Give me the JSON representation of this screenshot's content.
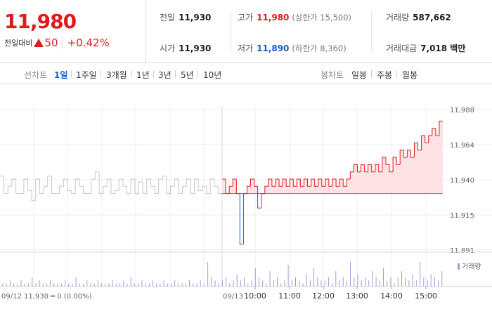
{
  "quote": {
    "price": "11,980",
    "change_label": "전일대비",
    "change_icon": "up-triangle-icon",
    "change_amount": "50",
    "change_percent": "+0.42%",
    "prev_close": {
      "label": "전일",
      "value": "11,930"
    },
    "open": {
      "label": "시가",
      "value": "11,930"
    },
    "high": {
      "label": "고가",
      "value": "11,980",
      "limit": "(상한가 15,500)"
    },
    "low": {
      "label": "저가",
      "value": "11,890",
      "limit": "(하한가 8,360)"
    },
    "volume": {
      "label": "거래량",
      "value": "587,662"
    },
    "turnover": {
      "label": "거래대금",
      "value": "7,018 백만"
    }
  },
  "toolbar": {
    "line_chart_label": "선차트",
    "periods": [
      "1일",
      "1주일",
      "3개월",
      "1년",
      "3년",
      "5년",
      "10년"
    ],
    "active_period": "1일",
    "candle_chart_label": "봉차트",
    "candle_periods": [
      "일봉",
      "주봉",
      "월봉"
    ]
  },
  "colors": {
    "up": "#e01b1b",
    "down": "#1261c4",
    "prev_day_line": "#c8c8c8",
    "up_fill": "#fde3e3",
    "volume": "#a996d6"
  },
  "chart_data": {
    "type": "line",
    "y_ticks": [
      "11,988",
      "11,964",
      "11,940",
      "11,915",
      "11,891"
    ],
    "ylim": [
      11891,
      11988
    ],
    "base_price": 11930,
    "prev_day": {
      "label": "09/12",
      "summary": "11,930 ━ 0 (0.00%)",
      "values": [
        11942,
        11930,
        11935,
        11940,
        11930,
        11930,
        11940,
        11932,
        11925,
        11940,
        11930,
        11935,
        11942,
        11930,
        11930,
        11935,
        11940,
        11932,
        11930,
        11940,
        11935,
        11930,
        11930,
        11940,
        11945,
        11930,
        11935,
        11940,
        11930,
        11932,
        11940,
        11935,
        11930,
        11940,
        11930,
        11938,
        11930,
        11940,
        11935,
        11930,
        11940,
        11942,
        11930,
        11935,
        11940,
        11930,
        11935,
        11940,
        11930,
        11940,
        11932,
        11935,
        11930,
        11940,
        11935,
        11930
      ]
    },
    "today": {
      "label": "09/13",
      "x_ticks": [
        "10:00",
        "11:00",
        "12:00",
        "13:00",
        "14:00",
        "15:00"
      ],
      "values": [
        11940,
        11930,
        11935,
        11940,
        11930,
        11895,
        11930,
        11935,
        11940,
        11935,
        11920,
        11930,
        11935,
        11940,
        11935,
        11940,
        11935,
        11940,
        11935,
        11940,
        11935,
        11940,
        11935,
        11940,
        11935,
        11940,
        11935,
        11940,
        11935,
        11940,
        11935,
        11940,
        11935,
        11940,
        11935,
        11940,
        11945,
        11950,
        11945,
        11950,
        11945,
        11950,
        11945,
        11950,
        11945,
        11955,
        11950,
        11945,
        11955,
        11950,
        11960,
        11955,
        11960,
        11955,
        11965,
        11960,
        11970,
        11965,
        11970,
        11975,
        11970,
        11980
      ]
    },
    "volume": {
      "legend": "거래량",
      "values": [
        1,
        1,
        2,
        1,
        1,
        2,
        1,
        1,
        3,
        1,
        2,
        1,
        1,
        2,
        1,
        1,
        1,
        2,
        1,
        1,
        3,
        1,
        1,
        2,
        1,
        1,
        2,
        1,
        1,
        1,
        2,
        1,
        1,
        2,
        1,
        3,
        1,
        1,
        2,
        1,
        1,
        2,
        1,
        1,
        2,
        1,
        1,
        2,
        1,
        1,
        1,
        2,
        1,
        1,
        2,
        1,
        8,
        3,
        2,
        1,
        2,
        3,
        1,
        2,
        4,
        2,
        3,
        1,
        2,
        6,
        3,
        2,
        1,
        5,
        2,
        3,
        1,
        2,
        7,
        2,
        3,
        2,
        1,
        4,
        2,
        6,
        3,
        2,
        2,
        3,
        1,
        5,
        2,
        3,
        2,
        8,
        3,
        4,
        2,
        3,
        2,
        5,
        3,
        2,
        6,
        2,
        3,
        1,
        3,
        5,
        3,
        2,
        4,
        2,
        8,
        3,
        2,
        4,
        3,
        2,
        5
      ]
    },
    "grid": true
  }
}
